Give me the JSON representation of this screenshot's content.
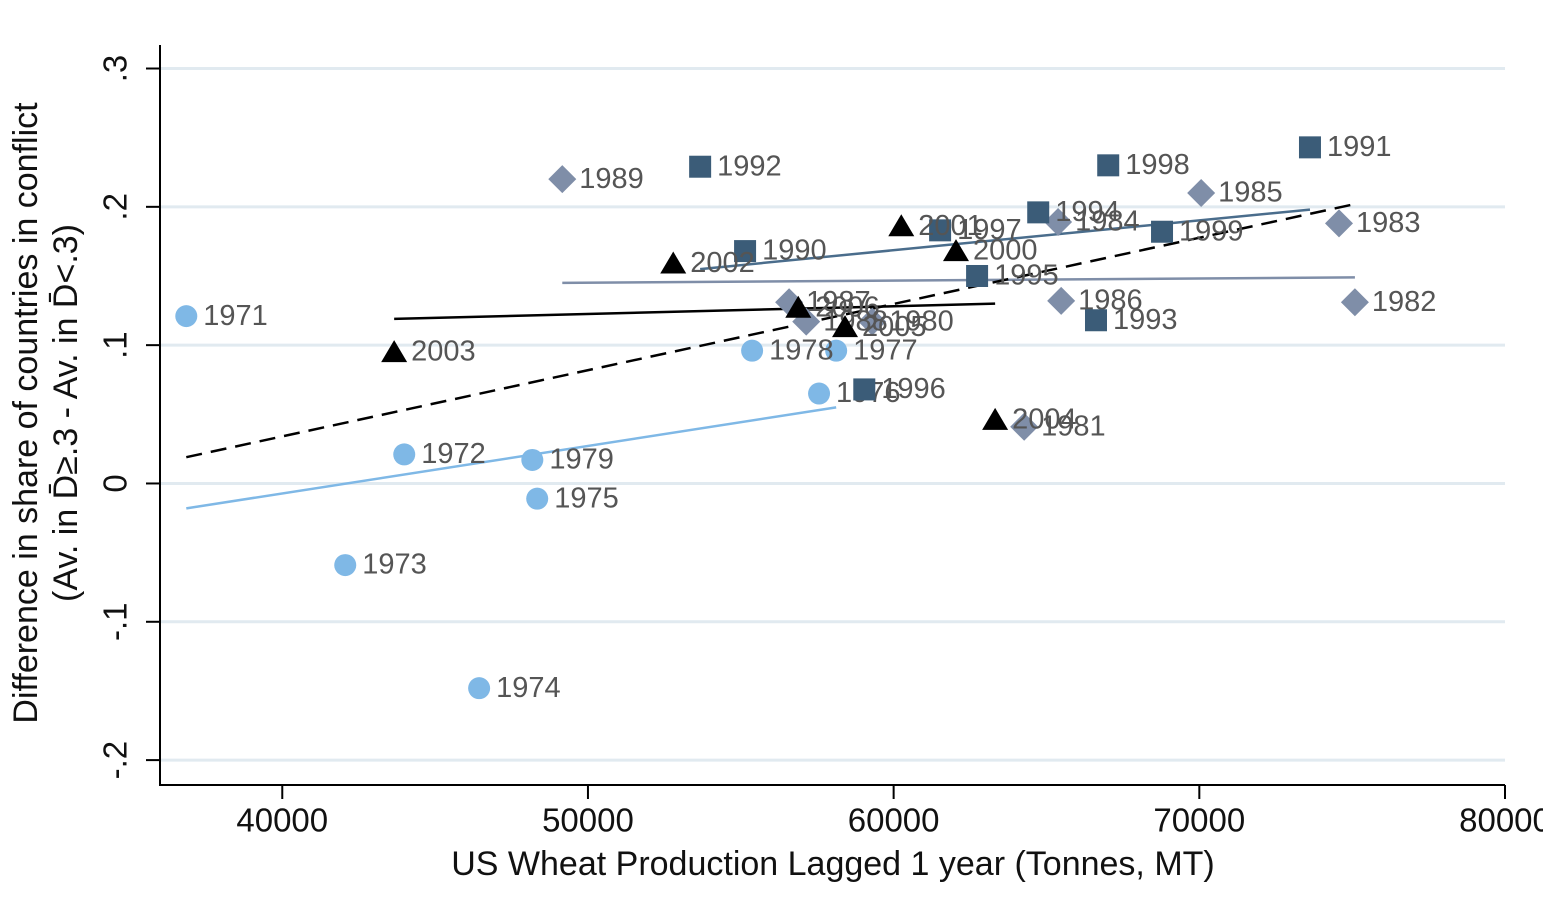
{
  "chart_data": {
    "type": "scatter",
    "xlabel": "US Wheat Production Lagged 1 year (Tonnes, MT)",
    "ylabel": [
      "Difference in share of countries in conflict",
      "(Av. in D̄≥.3 - Av. in D̄<.3)"
    ],
    "xlim": [
      36000,
      80000
    ],
    "ylim": [
      -0.218,
      0.317
    ],
    "xticks": [
      40000,
      50000,
      60000,
      70000,
      80000
    ],
    "yticks": [
      {
        "value": -0.2,
        "label": "-.2"
      },
      {
        "value": -0.1,
        "label": "-.1"
      },
      {
        "value": 0,
        "label": "0"
      },
      {
        "value": 0.1,
        "label": ".1"
      },
      {
        "value": 0.2,
        "label": ".2"
      },
      {
        "value": 0.3,
        "label": ".3"
      }
    ],
    "grid": true,
    "series": [
      {
        "marker": "circle",
        "color": "#7fb8e6",
        "labels": [
          "1971",
          "1972",
          "1973",
          "1974",
          "1975",
          "1976",
          "1977",
          "1978",
          "1979"
        ],
        "x": [
          36860,
          43990,
          42060,
          46440,
          48340,
          57560,
          58120,
          55370,
          48180
        ],
        "values": [
          0.121,
          0.021,
          -0.059,
          -0.148,
          -0.011,
          0.065,
          0.096,
          0.096,
          0.017
        ]
      },
      {
        "marker": "diamond",
        "color": "#7f8ea8",
        "labels": [
          "1980",
          "1981",
          "1982",
          "1983",
          "1984",
          "1985",
          "1986",
          "1987",
          "1988",
          "1989"
        ],
        "x": [
          59300,
          64270,
          75090,
          74570,
          65380,
          70060,
          65480,
          56580,
          57140,
          49160
        ],
        "values": [
          0.117,
          0.041,
          0.131,
          0.188,
          0.189,
          0.21,
          0.132,
          0.131,
          0.117,
          0.22
        ]
      },
      {
        "marker": "square",
        "color": "#3b5c78",
        "labels": [
          "1990",
          "1991",
          "1992",
          "1993",
          "1994",
          "1995",
          "1996",
          "1997",
          "1998",
          "1999"
        ],
        "x": [
          55140,
          73620,
          53670,
          66620,
          64730,
          62730,
          59040,
          61520,
          67020,
          68780
        ],
        "values": [
          0.168,
          0.243,
          0.229,
          0.118,
          0.196,
          0.15,
          0.068,
          0.183,
          0.23,
          0.182
        ]
      },
      {
        "marker": "triangle",
        "color": "#000000",
        "labels": [
          "2000",
          "2001",
          "2002",
          "2003",
          "2004",
          "2005",
          "2006"
        ],
        "x": [
          62040,
          60250,
          52790,
          43660,
          63320,
          58410,
          56880
        ],
        "values": [
          0.168,
          0.186,
          0.159,
          0.095,
          0.046,
          0.113,
          0.127
        ]
      }
    ],
    "fit_lines": [
      {
        "color": "#7fb8e6",
        "dashed": false,
        "x": [
          36860,
          58120
        ],
        "values": [
          -0.018,
          0.055
        ]
      },
      {
        "color": "#7f8ea8",
        "dashed": false,
        "x": [
          49160,
          75090
        ],
        "values": [
          0.145,
          0.149
        ]
      },
      {
        "color": "#4a6d8c",
        "dashed": false,
        "x": [
          53670,
          73620
        ],
        "values": [
          0.155,
          0.198
        ]
      },
      {
        "color": "#000000",
        "dashed": false,
        "x": [
          43660,
          63320
        ],
        "values": [
          0.119,
          0.13
        ]
      },
      {
        "color": "#000000",
        "dashed": true,
        "x": [
          36860,
          75090
        ],
        "values": [
          0.019,
          0.202
        ]
      }
    ]
  }
}
